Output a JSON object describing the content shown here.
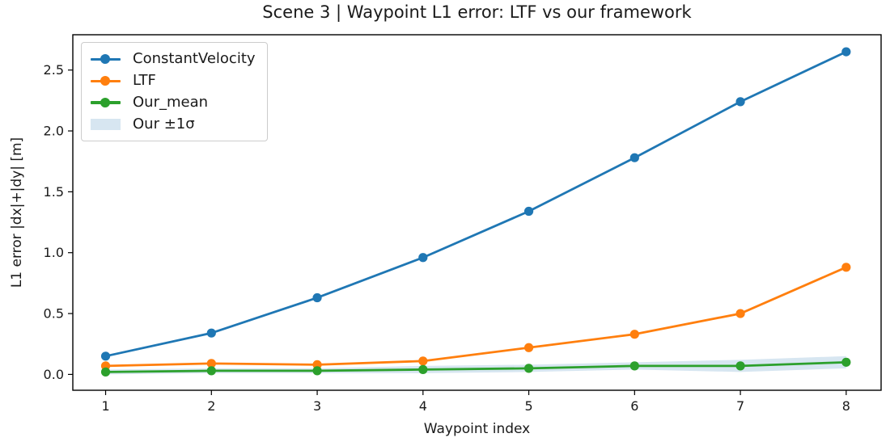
{
  "chart_data": {
    "type": "line",
    "title": "Scene 3 | Waypoint L1 error: LTF vs our framework",
    "xlabel": "Waypoint index",
    "ylabel": "L1 error |dx|+|dy| [m]",
    "x": [
      1,
      2,
      3,
      4,
      5,
      6,
      7,
      8
    ],
    "xtick_labels": [
      "1",
      "2",
      "3",
      "4",
      "5",
      "6",
      "7",
      "8"
    ],
    "yticks": [
      0.0,
      0.5,
      1.0,
      1.5,
      2.0,
      2.5
    ],
    "ytick_labels": [
      "0.0",
      "0.5",
      "1.0",
      "1.5",
      "2.0",
      "2.5"
    ],
    "xlim": [
      0.69,
      8.33
    ],
    "ylim": [
      -0.13,
      2.79
    ],
    "grid": false,
    "legend_position": "upper-left",
    "series": [
      {
        "name": "ConstantVelocity",
        "color": "#1f77b4",
        "values": [
          0.15,
          0.34,
          0.63,
          0.96,
          1.34,
          1.78,
          2.24,
          2.65
        ]
      },
      {
        "name": "LTF",
        "color": "#ff7f0e",
        "values": [
          0.07,
          0.09,
          0.08,
          0.11,
          0.22,
          0.33,
          0.5,
          0.88
        ]
      },
      {
        "name": "Our_mean",
        "color": "#2ca02c",
        "values": [
          0.02,
          0.03,
          0.03,
          0.04,
          0.05,
          0.07,
          0.07,
          0.1
        ]
      }
    ],
    "band": {
      "label": "Our ±1σ",
      "center_series": "Our_mean",
      "sigma": [
        0.02,
        0.02,
        0.02,
        0.03,
        0.03,
        0.03,
        0.05,
        0.05
      ],
      "color": "#1f77b4",
      "alpha": 0.18
    },
    "legend": {
      "entries": [
        {
          "label": "ConstantVelocity",
          "type": "line",
          "color": "#1f77b4"
        },
        {
          "label": "LTF",
          "type": "line",
          "color": "#ff7f0e"
        },
        {
          "label": "Our_mean",
          "type": "line",
          "color": "#2ca02c"
        },
        {
          "label": "Our ±1σ",
          "type": "patch",
          "color": "#1f77b4",
          "alpha": 0.18
        }
      ]
    },
    "style": {
      "spine_color": "#000000",
      "tick_color": "#000000",
      "text_color": "#1a1a1a",
      "line_width": 2.8,
      "marker_radius": 5.6
    }
  }
}
